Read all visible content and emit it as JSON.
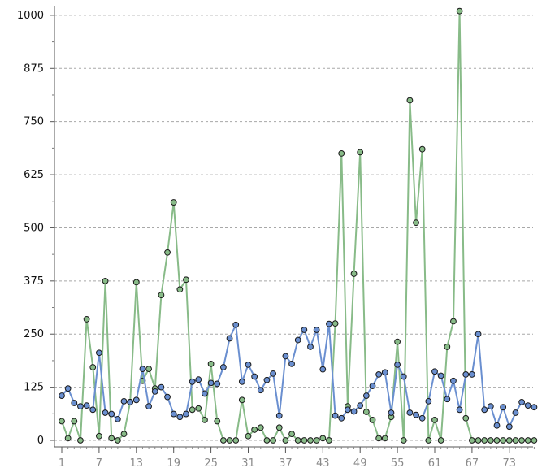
{
  "chart_data": {
    "type": "line",
    "x": [
      1,
      2,
      3,
      4,
      5,
      6,
      7,
      8,
      9,
      10,
      11,
      12,
      13,
      14,
      15,
      16,
      17,
      18,
      19,
      20,
      21,
      22,
      23,
      24,
      25,
      26,
      27,
      28,
      29,
      30,
      31,
      32,
      33,
      34,
      35,
      36,
      37,
      38,
      39,
      40,
      41,
      42,
      43,
      44,
      45,
      46,
      47,
      48,
      49,
      50,
      51,
      52,
      53,
      54,
      55,
      56,
      57,
      58,
      59,
      60,
      61,
      62,
      63,
      64,
      65,
      66,
      67,
      68,
      69,
      70,
      71,
      72,
      73,
      74,
      75,
      76,
      77
    ],
    "xticks": [
      "1",
      "7",
      "13",
      "19",
      "25",
      "31",
      "37",
      "43",
      "49",
      "55",
      "61",
      "67",
      "73"
    ],
    "yticks": [
      "0",
      "125",
      "250",
      "375",
      "500",
      "625",
      "750",
      "875",
      "1000"
    ],
    "ylim": [
      -10,
      1030
    ],
    "grid": "horizontal dashed",
    "series": [
      {
        "color": "#6a8fd0",
        "values": [
          105,
          122,
          88,
          80,
          82,
          72,
          206,
          65,
          62,
          50,
          92,
          90,
          95,
          168,
          80,
          115,
          125,
          102,
          62,
          55,
          62,
          138,
          143,
          110,
          135,
          133,
          172,
          240,
          272,
          138,
          178,
          150,
          118,
          142,
          157,
          58,
          198,
          180,
          236,
          260,
          220,
          260,
          167,
          274,
          58,
          52,
          72,
          68,
          82,
          105,
          128,
          155,
          160,
          65,
          178,
          150,
          65,
          60,
          52,
          92,
          162,
          152,
          97,
          140,
          72,
          155,
          155,
          250,
          72,
          80,
          35,
          78,
          32,
          65,
          90,
          82,
          78
        ]
      },
      {
        "color": "#88bb88",
        "values": [
          45,
          5,
          45,
          0,
          285,
          172,
          10,
          375,
          5,
          0,
          15,
          90,
          372,
          140,
          168,
          122,
          342,
          442,
          560,
          355,
          378,
          72,
          75,
          48,
          180,
          45,
          0,
          0,
          0,
          95,
          10,
          25,
          30,
          0,
          0,
          30,
          0,
          15,
          0,
          0,
          0,
          0,
          5,
          0,
          275,
          675,
          80,
          392,
          678,
          67,
          48,
          5,
          5,
          55,
          232,
          0,
          800,
          512,
          685,
          0,
          48,
          0,
          220,
          280,
          1010,
          52,
          0,
          0,
          0,
          0,
          0,
          0,
          0,
          0,
          0,
          0,
          0
        ]
      }
    ]
  }
}
